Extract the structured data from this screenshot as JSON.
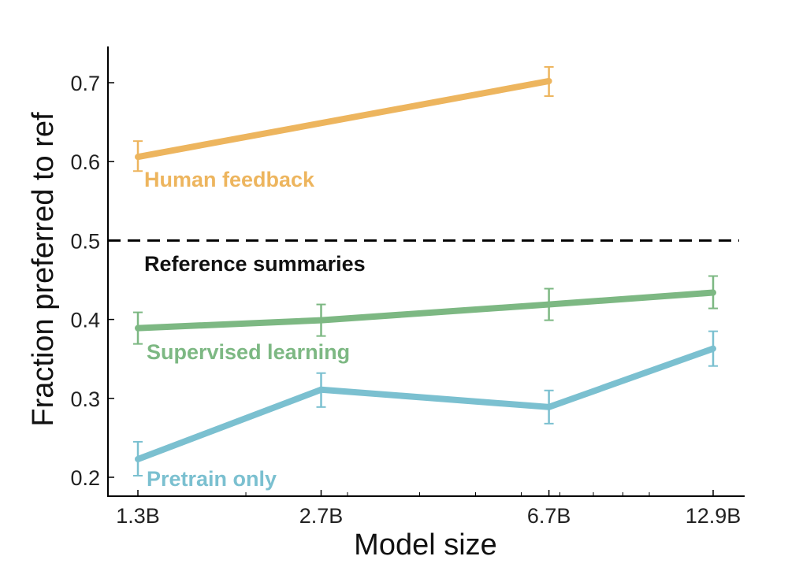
{
  "chart_data": {
    "type": "line",
    "title": "",
    "xlabel": "Model size",
    "ylabel": "Fraction preferred to ref",
    "x_scale": "log",
    "x": [
      1.3,
      2.7,
      6.7,
      12.9
    ],
    "x_tick_labels": [
      "1.3B",
      "2.7B",
      "6.7B",
      "12.9B"
    ],
    "x_minor_ticks": [
      2,
      3,
      4,
      5,
      6,
      7,
      8,
      9,
      10
    ],
    "xlim": [
      1.13,
      15.0
    ],
    "ylim": [
      0.18,
      0.745
    ],
    "y_ticks": [
      0.2,
      0.3,
      0.4,
      0.5,
      0.6,
      0.7
    ],
    "y_tick_labels": [
      "0.2",
      "0.3",
      "0.4",
      "0.5",
      "0.6",
      "0.7"
    ],
    "grid": false,
    "legend": "inline labels",
    "reference_line": {
      "y": 0.5,
      "label": "Reference summaries",
      "style": "dashed",
      "color": "#000000"
    },
    "series": [
      {
        "name": "Human feedback",
        "color": "#EDB55E",
        "x": [
          1.3,
          6.7
        ],
        "values": [
          0.606,
          0.702
        ],
        "err_low": [
          0.588,
          0.683
        ],
        "err_high": [
          0.626,
          0.72
        ]
      },
      {
        "name": "Supervised learning",
        "color": "#7DB883",
        "x": [
          1.3,
          2.7,
          6.7,
          12.9
        ],
        "values": [
          0.389,
          0.399,
          0.419,
          0.434
        ],
        "err_low": [
          0.369,
          0.379,
          0.399,
          0.414
        ],
        "err_high": [
          0.409,
          0.419,
          0.439,
          0.455
        ]
      },
      {
        "name": "Pretrain only",
        "color": "#7BC0D0",
        "x": [
          1.3,
          2.7,
          6.7,
          12.9
        ],
        "values": [
          0.223,
          0.311,
          0.289,
          0.363
        ],
        "err_low": [
          0.202,
          0.289,
          0.268,
          0.341
        ],
        "err_high": [
          0.245,
          0.332,
          0.31,
          0.385
        ]
      }
    ]
  }
}
